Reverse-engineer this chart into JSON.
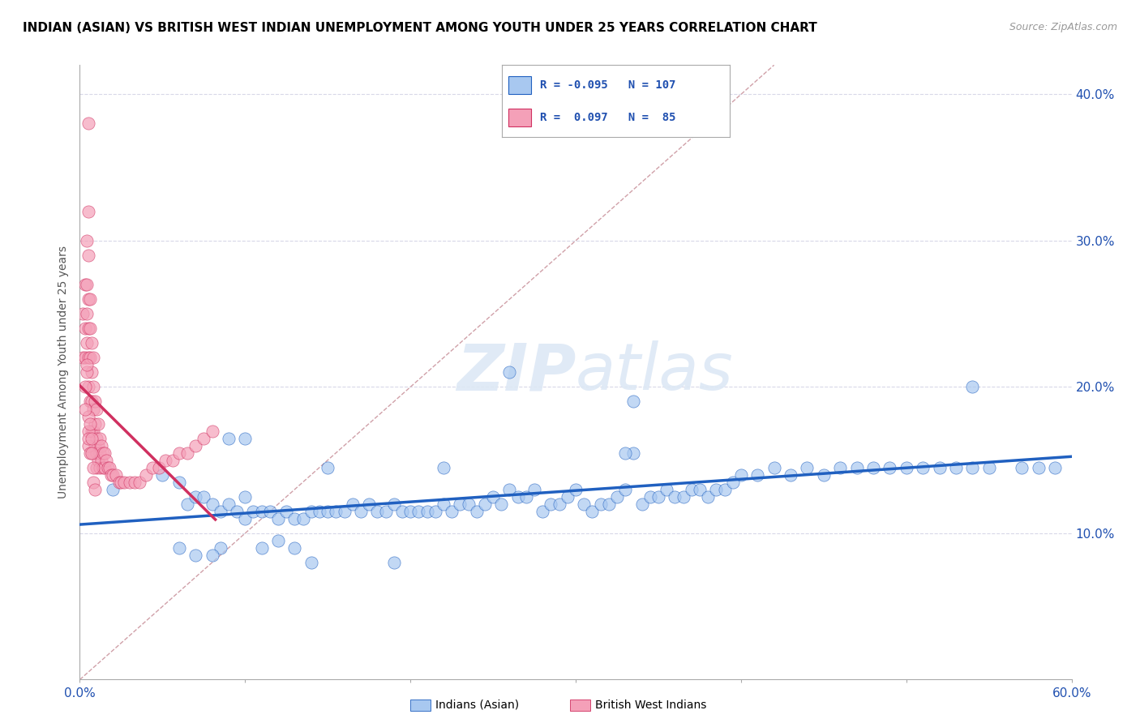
{
  "title": "INDIAN (ASIAN) VS BRITISH WEST INDIAN UNEMPLOYMENT AMONG YOUTH UNDER 25 YEARS CORRELATION CHART",
  "source": "Source: ZipAtlas.com",
  "ylabel": "Unemployment Among Youth under 25 years",
  "xlim": [
    0.0,
    0.6
  ],
  "ylim": [
    0.0,
    0.42
  ],
  "xticks": [
    0.0,
    0.1,
    0.2,
    0.3,
    0.4,
    0.5,
    0.6
  ],
  "xticklabels": [
    "0.0%",
    "",
    "",
    "",
    "",
    "",
    "60.0%"
  ],
  "yticks_right": [
    0.1,
    0.2,
    0.3,
    0.4
  ],
  "ytick_right_labels": [
    "10.0%",
    "20.0%",
    "30.0%",
    "40.0%"
  ],
  "R_asian": -0.095,
  "N_asian": 107,
  "R_bwi": 0.097,
  "N_bwi": 85,
  "color_asian": "#a8c8f0",
  "color_bwi": "#f4a0b8",
  "line_color_asian": "#2060c0",
  "line_color_bwi": "#d03060",
  "diagonal_color": "#d0a0a8",
  "grid_color": "#d8d8e8",
  "legend_R_color": "#2050b0",
  "title_fontsize": 11,
  "source_fontsize": 9,
  "asian_x": [
    0.02,
    0.05,
    0.06,
    0.065,
    0.07,
    0.075,
    0.08,
    0.085,
    0.09,
    0.095,
    0.1,
    0.1,
    0.105,
    0.11,
    0.115,
    0.12,
    0.125,
    0.13,
    0.135,
    0.14,
    0.145,
    0.15,
    0.155,
    0.16,
    0.165,
    0.17,
    0.175,
    0.18,
    0.185,
    0.19,
    0.195,
    0.2,
    0.205,
    0.21,
    0.215,
    0.22,
    0.225,
    0.23,
    0.235,
    0.24,
    0.245,
    0.25,
    0.255,
    0.26,
    0.265,
    0.27,
    0.275,
    0.28,
    0.285,
    0.29,
    0.295,
    0.3,
    0.305,
    0.31,
    0.315,
    0.32,
    0.325,
    0.33,
    0.335,
    0.34,
    0.345,
    0.35,
    0.355,
    0.36,
    0.365,
    0.37,
    0.375,
    0.38,
    0.385,
    0.39,
    0.395,
    0.4,
    0.41,
    0.42,
    0.43,
    0.44,
    0.45,
    0.46,
    0.47,
    0.48,
    0.49,
    0.5,
    0.51,
    0.52,
    0.53,
    0.54,
    0.55,
    0.57,
    0.58,
    0.59,
    0.26,
    0.335,
    0.15,
    0.33,
    0.22,
    0.19,
    0.54,
    0.09,
    0.1,
    0.085,
    0.07,
    0.08,
    0.06,
    0.11,
    0.12,
    0.13,
    0.14
  ],
  "asian_y": [
    0.13,
    0.14,
    0.135,
    0.12,
    0.125,
    0.125,
    0.12,
    0.115,
    0.12,
    0.115,
    0.125,
    0.11,
    0.115,
    0.115,
    0.115,
    0.11,
    0.115,
    0.11,
    0.11,
    0.115,
    0.115,
    0.115,
    0.115,
    0.115,
    0.12,
    0.115,
    0.12,
    0.115,
    0.115,
    0.12,
    0.115,
    0.115,
    0.115,
    0.115,
    0.115,
    0.12,
    0.115,
    0.12,
    0.12,
    0.115,
    0.12,
    0.125,
    0.12,
    0.13,
    0.125,
    0.125,
    0.13,
    0.115,
    0.12,
    0.12,
    0.125,
    0.13,
    0.12,
    0.115,
    0.12,
    0.12,
    0.125,
    0.13,
    0.19,
    0.12,
    0.125,
    0.125,
    0.13,
    0.125,
    0.125,
    0.13,
    0.13,
    0.125,
    0.13,
    0.13,
    0.135,
    0.14,
    0.14,
    0.145,
    0.14,
    0.145,
    0.14,
    0.145,
    0.145,
    0.145,
    0.145,
    0.145,
    0.145,
    0.145,
    0.145,
    0.145,
    0.145,
    0.145,
    0.145,
    0.145,
    0.21,
    0.155,
    0.145,
    0.155,
    0.145,
    0.08,
    0.2,
    0.165,
    0.165,
    0.09,
    0.085,
    0.085,
    0.09,
    0.09,
    0.095,
    0.09,
    0.08
  ],
  "bwi_x": [
    0.002,
    0.002,
    0.003,
    0.003,
    0.003,
    0.004,
    0.004,
    0.004,
    0.004,
    0.005,
    0.005,
    0.005,
    0.005,
    0.005,
    0.005,
    0.005,
    0.006,
    0.006,
    0.006,
    0.006,
    0.007,
    0.007,
    0.007,
    0.007,
    0.008,
    0.008,
    0.008,
    0.008,
    0.008,
    0.009,
    0.009,
    0.009,
    0.01,
    0.01,
    0.01,
    0.01,
    0.011,
    0.011,
    0.011,
    0.012,
    0.012,
    0.012,
    0.013,
    0.013,
    0.014,
    0.014,
    0.015,
    0.015,
    0.016,
    0.017,
    0.018,
    0.019,
    0.02,
    0.022,
    0.024,
    0.025,
    0.027,
    0.03,
    0.033,
    0.036,
    0.04,
    0.044,
    0.048,
    0.052,
    0.056,
    0.06,
    0.065,
    0.07,
    0.075,
    0.08,
    0.005,
    0.005,
    0.004,
    0.003,
    0.003,
    0.004,
    0.005,
    0.005,
    0.006,
    0.007,
    0.006,
    0.007,
    0.008,
    0.008,
    0.009
  ],
  "bwi_y": [
    0.25,
    0.22,
    0.27,
    0.24,
    0.22,
    0.3,
    0.27,
    0.25,
    0.23,
    0.38,
    0.32,
    0.29,
    0.26,
    0.24,
    0.22,
    0.2,
    0.26,
    0.24,
    0.22,
    0.19,
    0.23,
    0.21,
    0.19,
    0.17,
    0.22,
    0.2,
    0.185,
    0.17,
    0.155,
    0.19,
    0.175,
    0.16,
    0.185,
    0.165,
    0.155,
    0.145,
    0.175,
    0.16,
    0.15,
    0.165,
    0.155,
    0.145,
    0.16,
    0.15,
    0.155,
    0.145,
    0.155,
    0.145,
    0.15,
    0.145,
    0.145,
    0.14,
    0.14,
    0.14,
    0.135,
    0.135,
    0.135,
    0.135,
    0.135,
    0.135,
    0.14,
    0.145,
    0.145,
    0.15,
    0.15,
    0.155,
    0.155,
    0.16,
    0.165,
    0.17,
    0.18,
    0.16,
    0.21,
    0.2,
    0.185,
    0.215,
    0.17,
    0.165,
    0.175,
    0.165,
    0.155,
    0.155,
    0.145,
    0.135,
    0.13
  ]
}
